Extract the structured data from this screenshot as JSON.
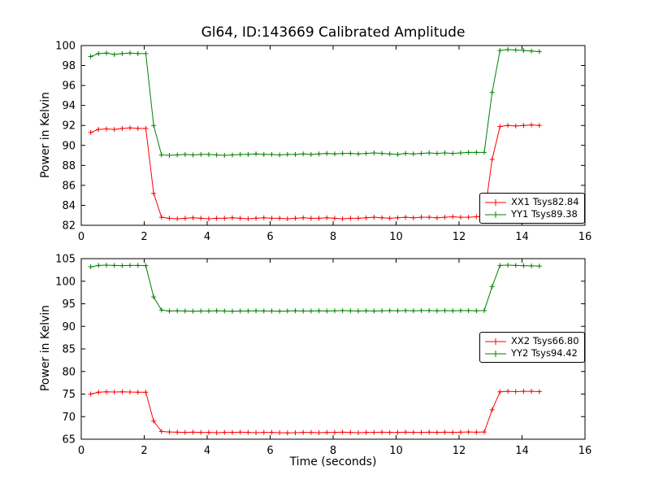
{
  "figure": {
    "title": "Gl64, ID:143669 Calibrated Amplitude",
    "xlabel": "Time (seconds)",
    "ylabel_top": "Power in Kelvin",
    "ylabel_bottom": "Power in Kelvin"
  },
  "chart_data": [
    {
      "type": "line",
      "title": "Gl64, ID:143669 Calibrated Amplitude",
      "xlabel": "",
      "ylabel": "Power in Kelvin",
      "xlim": [
        0,
        16
      ],
      "ylim": [
        82,
        100
      ],
      "xticks": [
        0,
        2,
        4,
        6,
        8,
        10,
        12,
        14,
        16
      ],
      "yticks": [
        82,
        84,
        86,
        88,
        90,
        92,
        94,
        96,
        98,
        100
      ],
      "grid": false,
      "legend_position": "lower right",
      "marker": "+",
      "x": [
        0.3,
        0.55,
        0.8,
        1.05,
        1.3,
        1.55,
        1.8,
        2.05,
        2.3,
        2.55,
        2.8,
        3.05,
        3.3,
        3.55,
        3.8,
        4.05,
        4.3,
        4.55,
        4.8,
        5.05,
        5.3,
        5.55,
        5.8,
        6.05,
        6.3,
        6.55,
        6.8,
        7.05,
        7.3,
        7.55,
        7.8,
        8.05,
        8.3,
        8.55,
        8.8,
        9.05,
        9.3,
        9.55,
        9.8,
        10.05,
        10.3,
        10.55,
        10.8,
        11.05,
        11.3,
        11.55,
        11.8,
        12.05,
        12.3,
        12.55,
        12.8,
        13.05,
        13.3,
        13.55,
        13.8,
        14.05,
        14.3,
        14.55
      ],
      "series": [
        {
          "name": "XX1 Tsys82.84",
          "color": "#ff0000",
          "values": [
            91.3,
            91.6,
            91.65,
            91.6,
            91.7,
            91.75,
            91.7,
            91.7,
            85.2,
            82.8,
            82.7,
            82.65,
            82.7,
            82.75,
            82.7,
            82.65,
            82.7,
            82.7,
            82.75,
            82.7,
            82.65,
            82.7,
            82.75,
            82.7,
            82.7,
            82.65,
            82.7,
            82.75,
            82.7,
            82.7,
            82.75,
            82.7,
            82.65,
            82.7,
            82.7,
            82.75,
            82.8,
            82.75,
            82.7,
            82.75,
            82.8,
            82.75,
            82.8,
            82.8,
            82.75,
            82.8,
            82.85,
            82.8,
            82.8,
            82.85,
            82.85,
            88.6,
            91.9,
            92.0,
            91.95,
            92.0,
            92.05,
            92.0
          ]
        },
        {
          "name": "YY1 Tsys89.38",
          "color": "#008000",
          "values": [
            98.9,
            99.2,
            99.25,
            99.1,
            99.2,
            99.25,
            99.2,
            99.2,
            92.0,
            89.05,
            89.0,
            89.05,
            89.1,
            89.05,
            89.1,
            89.1,
            89.05,
            89.0,
            89.05,
            89.1,
            89.1,
            89.15,
            89.1,
            89.1,
            89.05,
            89.1,
            89.1,
            89.15,
            89.1,
            89.15,
            89.2,
            89.15,
            89.2,
            89.2,
            89.15,
            89.2,
            89.25,
            89.2,
            89.15,
            89.1,
            89.2,
            89.15,
            89.2,
            89.25,
            89.2,
            89.25,
            89.2,
            89.25,
            89.3,
            89.3,
            89.3,
            95.3,
            99.5,
            99.6,
            99.55,
            99.5,
            99.45,
            99.4
          ]
        }
      ]
    },
    {
      "type": "line",
      "title": "",
      "xlabel": "Time (seconds)",
      "ylabel": "Power in Kelvin",
      "xlim": [
        0,
        16
      ],
      "ylim": [
        65,
        105
      ],
      "xticks": [
        0,
        2,
        4,
        6,
        8,
        10,
        12,
        14,
        16
      ],
      "yticks": [
        65,
        70,
        75,
        80,
        85,
        90,
        95,
        100,
        105
      ],
      "grid": false,
      "legend_position": "center right",
      "marker": "+",
      "x": [
        0.3,
        0.55,
        0.8,
        1.05,
        1.3,
        1.55,
        1.8,
        2.05,
        2.3,
        2.55,
        2.8,
        3.05,
        3.3,
        3.55,
        3.8,
        4.05,
        4.3,
        4.55,
        4.8,
        5.05,
        5.3,
        5.55,
        5.8,
        6.05,
        6.3,
        6.55,
        6.8,
        7.05,
        7.3,
        7.55,
        7.8,
        8.05,
        8.3,
        8.55,
        8.8,
        9.05,
        9.3,
        9.55,
        9.8,
        10.05,
        10.3,
        10.55,
        10.8,
        11.05,
        11.3,
        11.55,
        11.8,
        12.05,
        12.3,
        12.55,
        12.8,
        13.05,
        13.3,
        13.55,
        13.8,
        14.05,
        14.3,
        14.55
      ],
      "series": [
        {
          "name": "XX2 Tsys66.80",
          "color": "#ff0000",
          "values": [
            75.0,
            75.4,
            75.5,
            75.45,
            75.5,
            75.45,
            75.4,
            75.4,
            69.0,
            66.7,
            66.6,
            66.55,
            66.5,
            66.55,
            66.5,
            66.5,
            66.45,
            66.5,
            66.5,
            66.55,
            66.5,
            66.45,
            66.5,
            66.5,
            66.45,
            66.4,
            66.45,
            66.5,
            66.5,
            66.45,
            66.5,
            66.5,
            66.55,
            66.5,
            66.45,
            66.5,
            66.5,
            66.55,
            66.5,
            66.5,
            66.55,
            66.5,
            66.5,
            66.55,
            66.5,
            66.55,
            66.5,
            66.55,
            66.6,
            66.55,
            66.6,
            71.5,
            75.5,
            75.6,
            75.55,
            75.6,
            75.6,
            75.55
          ]
        },
        {
          "name": "YY2 Tsys94.42",
          "color": "#008000",
          "values": [
            103.2,
            103.5,
            103.55,
            103.5,
            103.45,
            103.5,
            103.5,
            103.45,
            96.5,
            93.6,
            93.4,
            93.45,
            93.4,
            93.35,
            93.4,
            93.4,
            93.45,
            93.4,
            93.35,
            93.4,
            93.4,
            93.45,
            93.4,
            93.4,
            93.35,
            93.4,
            93.45,
            93.4,
            93.4,
            93.45,
            93.4,
            93.45,
            93.5,
            93.45,
            93.4,
            93.45,
            93.4,
            93.45,
            93.5,
            93.45,
            93.5,
            93.45,
            93.5,
            93.5,
            93.45,
            93.5,
            93.45,
            93.5,
            93.5,
            93.45,
            93.5,
            98.8,
            103.5,
            103.55,
            103.5,
            103.45,
            103.4,
            103.35
          ]
        }
      ]
    }
  ]
}
